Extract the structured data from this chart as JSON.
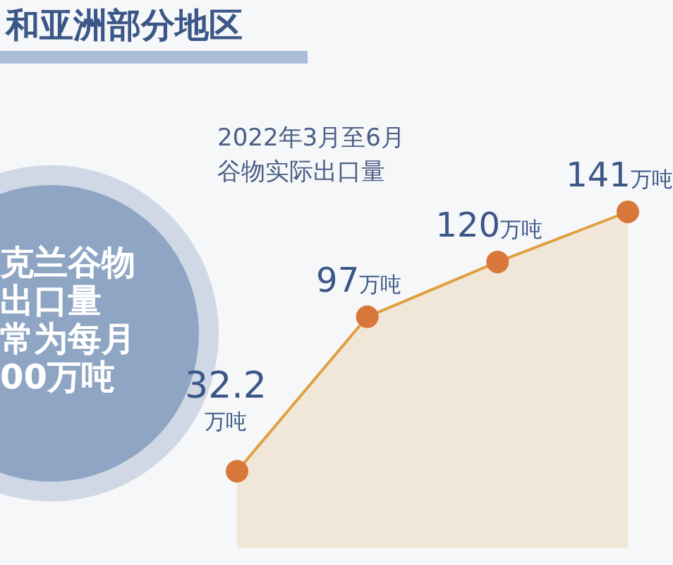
{
  "chart_data": {
    "type": "area",
    "title": "和亚洲部分地区",
    "subtitle": "2022年3月至6月谷物实际出口量",
    "annotations": [
      "克兰谷物",
      "出口量",
      "常为每月",
      "00万吨"
    ],
    "categories": [
      null,
      null,
      null,
      null
    ],
    "series": [
      {
        "color": "#e0a040",
        "values": [
          32.2,
          97,
          120,
          141
        ],
        "value_labels": [
          "32.2\n万吨",
          "97万吨",
          "120万吨",
          "141万吨"
        ]
      }
    ],
    "marker": "circle"
  }
}
